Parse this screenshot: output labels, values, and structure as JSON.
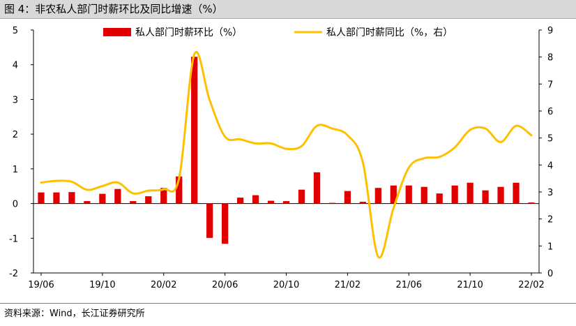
{
  "title": "图 4：非农私人部门时薪环比及同比增速（%）",
  "source": "资料来源：Wind，长江证券研究所",
  "chart_data": {
    "type": "bar",
    "categories": [
      "19/06",
      "19/07",
      "19/08",
      "19/09",
      "19/10",
      "19/11",
      "19/12",
      "20/01",
      "20/02",
      "20/03",
      "20/04",
      "20/05",
      "20/06",
      "20/07",
      "20/08",
      "20/09",
      "20/10",
      "20/11",
      "20/12",
      "21/01",
      "21/02",
      "21/03",
      "21/04",
      "21/05",
      "21/06",
      "21/07",
      "21/08",
      "21/09",
      "21/10",
      "21/11",
      "21/12",
      "22/01",
      "22/02"
    ],
    "x_tick_labels": [
      "19/06",
      "19/10",
      "20/02",
      "20/06",
      "20/10",
      "21/02",
      "21/06",
      "21/10",
      "22/02"
    ],
    "series": [
      {
        "name": "私人部门时薪环比（%）",
        "type": "bar",
        "axis": "left",
        "color": "#e00000",
        "values": [
          0.32,
          0.32,
          0.33,
          0.07,
          0.28,
          0.42,
          0.07,
          0.21,
          0.45,
          0.78,
          4.23,
          -0.99,
          -1.16,
          0.17,
          0.24,
          0.08,
          0.07,
          0.4,
          0.9,
          0.02,
          0.36,
          0.05,
          0.45,
          0.52,
          0.52,
          0.48,
          0.29,
          0.52,
          0.6,
          0.38,
          0.48,
          0.6,
          0.03
        ]
      },
      {
        "name": "私人部门时薪同比（%，右）",
        "type": "line",
        "axis": "right",
        "color": "#ffc000",
        "values": [
          3.35,
          3.41,
          3.38,
          3.08,
          3.22,
          3.35,
          2.95,
          3.05,
          3.1,
          3.5,
          8.1,
          6.4,
          5.05,
          4.95,
          4.8,
          4.8,
          4.6,
          4.7,
          5.45,
          5.35,
          5.1,
          4.1,
          0.6,
          2.4,
          3.9,
          4.25,
          4.3,
          4.65,
          5.3,
          5.35,
          4.85,
          5.45,
          5.1
        ]
      }
    ],
    "y_left": {
      "min": -2,
      "max": 5,
      "ticks": [
        -2,
        -1,
        0,
        1,
        2,
        3,
        4,
        5
      ]
    },
    "y_right": {
      "min": 0,
      "max": 9,
      "ticks": [
        0,
        1,
        2,
        3,
        4,
        5,
        6,
        7,
        8,
        9
      ]
    },
    "legend_position": "top",
    "grid": false
  }
}
